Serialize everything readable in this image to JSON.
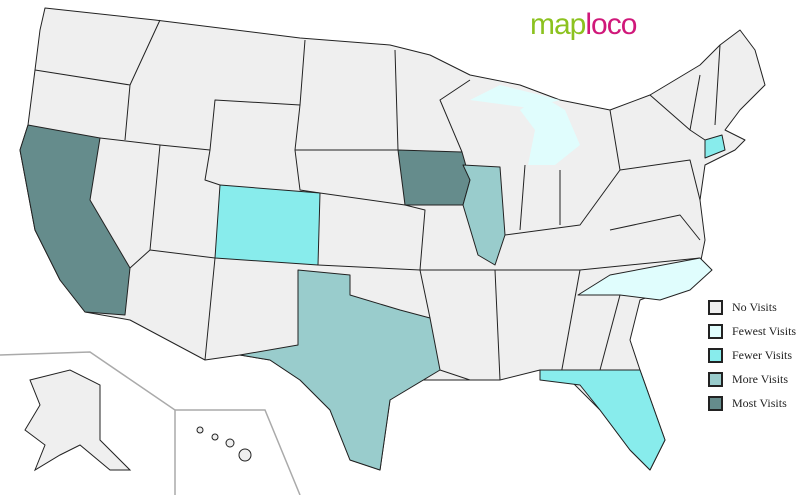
{
  "logo": {
    "part1": "map",
    "part2": "loco"
  },
  "legend": [
    {
      "label": "No Visits",
      "color": "#efefef"
    },
    {
      "label": "Fewest Visits",
      "color": "#e0fdfd"
    },
    {
      "label": "Fewer Visits",
      "color": "#88ecec"
    },
    {
      "label": "More Visits",
      "color": "#99cccc"
    },
    {
      "label": "Most Visits",
      "color": "#658c8c"
    }
  ],
  "states": {
    "california": "Most Visits",
    "iowa": "Most Visits",
    "illinois": "More Visits",
    "texas": "More Visits",
    "colorado": "Fewer Visits",
    "florida": "Fewer Visits",
    "connecticut": "Fewer Visits",
    "michigan": "Fewest Visits",
    "north-carolina": "Fewest Visits"
  }
}
